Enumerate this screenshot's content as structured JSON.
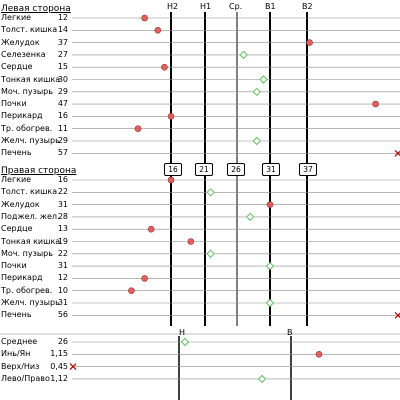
{
  "colors": {
    "low_marker": "#e06060",
    "normal_marker": "#60c060",
    "high_marker": "#e06060",
    "x_marker": "#c00000",
    "line": "#000000"
  },
  "headers": {
    "h2": "H2",
    "h1": "H1",
    "avg": "Ср.",
    "b1": "B1",
    "b2": "B2"
  },
  "threshold_boxes": [
    "16",
    "21",
    "26",
    "31",
    "37"
  ],
  "left_side": {
    "title": "Левая сторона",
    "rows": [
      {
        "label": "Легкие",
        "value": "12",
        "marker": "low"
      },
      {
        "label": "Толст. кишка",
        "value": "14",
        "marker": "low"
      },
      {
        "label": "Желудок",
        "value": "37",
        "marker": "high"
      },
      {
        "label": "Селезенка",
        "value": "27",
        "marker": "normal"
      },
      {
        "label": "Сердце",
        "value": "15",
        "marker": "low"
      },
      {
        "label": "Тонкая кишка",
        "value": "30",
        "marker": "normal"
      },
      {
        "label": "Моч. пузырь",
        "value": "29",
        "marker": "normal"
      },
      {
        "label": "Почки",
        "value": "47",
        "marker": "high"
      },
      {
        "label": "Перикард",
        "value": "16",
        "marker": "low"
      },
      {
        "label": "Тр. обогрев.",
        "value": "11",
        "marker": "low"
      },
      {
        "label": "Желч. пузырь",
        "value": "29",
        "marker": "normal"
      },
      {
        "label": "Печень",
        "value": "57",
        "marker": "x"
      }
    ]
  },
  "right_side": {
    "title": "Правая сторона",
    "rows": [
      {
        "label": "Легкие",
        "value": "16",
        "marker": "low"
      },
      {
        "label": "Толст. кишка",
        "value": "22",
        "marker": "normal"
      },
      {
        "label": "Желудок",
        "value": "31",
        "marker": "high"
      },
      {
        "label": "Поджел. жел.",
        "value": "28",
        "marker": "normal"
      },
      {
        "label": "Сердце",
        "value": "13",
        "marker": "low"
      },
      {
        "label": "Тонкая кишка",
        "value": "19",
        "marker": "low"
      },
      {
        "label": "Моч. пузырь",
        "value": "22",
        "marker": "normal"
      },
      {
        "label": "Почки",
        "value": "31",
        "marker": "normal"
      },
      {
        "label": "Перикард",
        "value": "12",
        "marker": "low"
      },
      {
        "label": "Тр. обогрев.",
        "value": "10",
        "marker": "low"
      },
      {
        "label": "Желч. пузырь",
        "value": "31",
        "marker": "normal"
      },
      {
        "label": "Печень",
        "value": "56",
        "marker": "x"
      }
    ]
  },
  "summary": {
    "headers": {
      "n": "Н",
      "b": "В"
    },
    "rows": [
      {
        "label": "Среднее",
        "value": "26",
        "marker": "normal"
      },
      {
        "label": "Инь/Ян",
        "value": "1,15",
        "marker": "high"
      },
      {
        "label": "Верх/Низ",
        "value": "0,45",
        "marker": "x"
      },
      {
        "label": "Лево/Право",
        "value": "1,12",
        "marker": "normal"
      }
    ]
  }
}
